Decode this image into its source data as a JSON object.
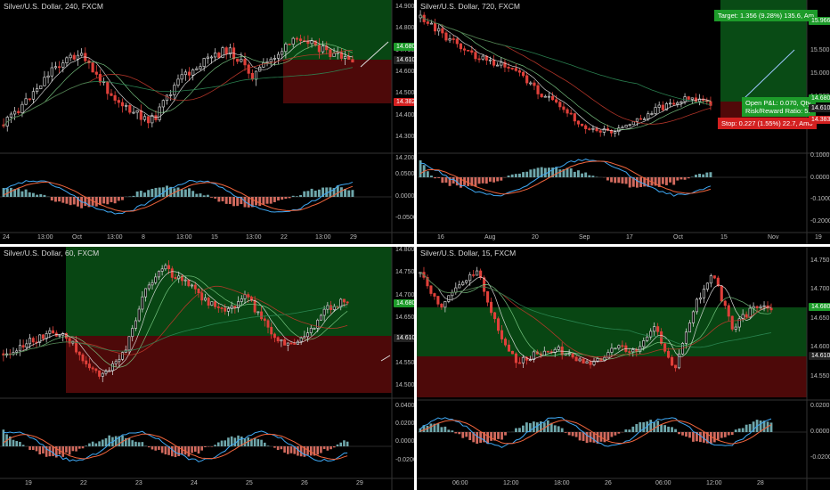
{
  "colors": {
    "bull": "#cfcfcf",
    "bear": "#e0403a",
    "target_zone": "#0b5e1a",
    "stop_zone": "#5a0a0a",
    "tag_green": "#1d9b2a",
    "tag_red": "#d32020",
    "macd_line": "#3fa9f5",
    "signal_line": "#f0643c",
    "hist_pos": "#6fa7ab",
    "hist_neg": "#d16a5e"
  },
  "panels": [
    {
      "id": "tl",
      "title": "Silver/U.S. Dollar, 240, FXCM",
      "price_ticks": [
        "14.900",
        "14.800",
        "14.700",
        "14.600",
        "14.500",
        "14.400",
        "14.300",
        "14.200"
      ],
      "price_tags": [
        {
          "label": "14.680",
          "kind": "green"
        },
        {
          "label": "14.610",
          "kind": "dark"
        },
        {
          "label": "14.382",
          "kind": "red"
        }
      ],
      "macd_ticks": [
        "0.0500",
        "0.0000",
        "-0.0500"
      ],
      "time_ticks": [
        "24",
        "13:00",
        "Oct",
        "13:00",
        "8",
        "13:00",
        "15",
        "13:00",
        "22",
        "13:00",
        "29"
      ]
    },
    {
      "id": "tr",
      "title": "Silver/U.S. Dollar, 720, FXCM",
      "price_ticks": [
        "15.500",
        "15.000",
        "14.500",
        "14.000"
      ],
      "price_tags": [
        {
          "label": "15.966",
          "kind": "green"
        },
        {
          "label": "14.680",
          "kind": "green"
        },
        {
          "label": "14.610",
          "kind": "dark"
        },
        {
          "label": "14.383",
          "kind": "red"
        }
      ],
      "macd_ticks": [
        "0.1000",
        "0.0000",
        "-0.1000",
        "-0.2000"
      ],
      "time_ticks": [
        "16",
        "Aug",
        "20",
        "Sep",
        "17",
        "Oct",
        "15",
        "Nov",
        "19"
      ],
      "target_text": "Target: 1.356 (9.28%) 135.6, Am",
      "pnl_text": "Open P&L: 0.070, Qty:",
      "rr_text": "Risk/Reward Ratio: 5.",
      "stop_text": "Stop: 0.227 (1.55%) 22.7, Amo"
    },
    {
      "id": "bl",
      "title": "Silver/U.S. Dollar, 60, FXCM",
      "price_ticks": [
        "14.800",
        "14.750",
        "14.700",
        "14.650",
        "14.600",
        "14.550",
        "14.500"
      ],
      "price_tags": [
        {
          "label": "14.680",
          "kind": "green"
        },
        {
          "label": "14.610",
          "kind": "dark"
        }
      ],
      "macd_ticks": [
        "0.0400",
        "0.0200",
        "0.0000",
        "-0.0200"
      ],
      "time_ticks": [
        "19",
        "22",
        "23",
        "24",
        "25",
        "26",
        "29"
      ]
    },
    {
      "id": "br",
      "title": "Silver/U.S. Dollar, 15, FXCM",
      "price_ticks": [
        "14.750",
        "14.700",
        "14.650",
        "14.600",
        "14.550"
      ],
      "price_tags": [
        {
          "label": "14.680",
          "kind": "green"
        },
        {
          "label": "14.610",
          "kind": "dark"
        }
      ],
      "macd_ticks": [
        "0.0200",
        "0.0000",
        "-0.0200"
      ],
      "time_ticks": [
        "06:00",
        "12:00",
        "18:00",
        "26",
        "06:00",
        "12:00",
        "28"
      ]
    }
  ]
}
